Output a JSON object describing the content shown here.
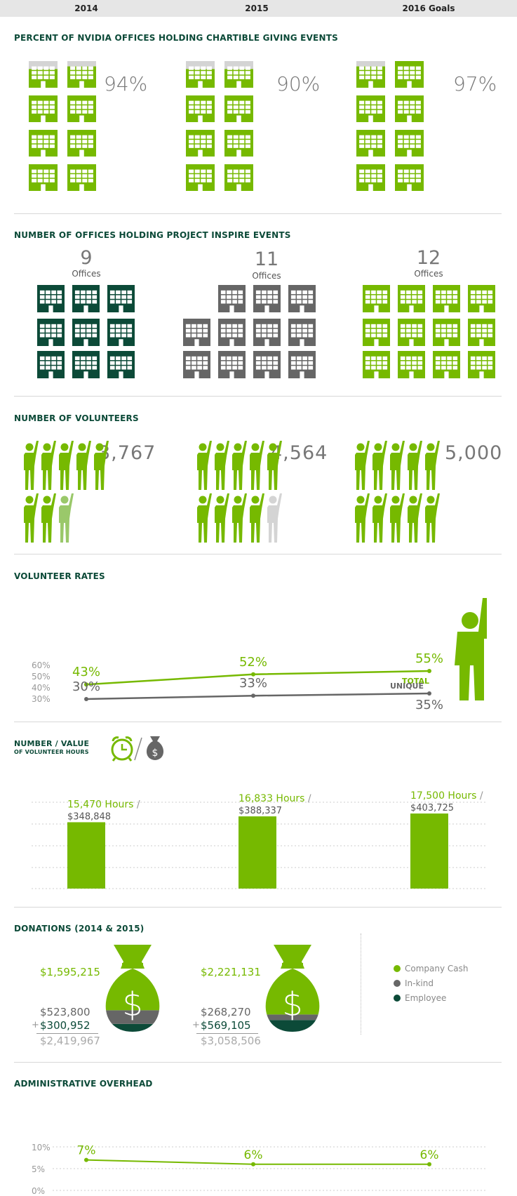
{
  "header": {
    "years": [
      "2014",
      "2015",
      "2016 Goals"
    ]
  },
  "colors": {
    "green": "#76b900",
    "dark_green": "#0c4a38",
    "gray": "#666666",
    "light_gray": "#d4d4d4"
  },
  "sections": {
    "giving_events": "PERCENT OF NVIDIA OFFICES HOLDING CHARTIBLE GIVING EVENTS",
    "project_inspire": "NUMBER OF OFFICES HOLDING PROJECT INSPIRE EVENTS",
    "volunteers": "NUMBER OF VOLUNTEERS",
    "volunteer_rates": "VOLUNTEER RATES",
    "hours_title_1": "NUMBER / VALUE",
    "hours_title_2": "OF VOLUNTEER HOURS",
    "donations": "DONATIONS (2014 & 2015)",
    "overhead": "ADMINISTRATIVE OVERHEAD"
  },
  "chart_data": [
    {
      "type": "table",
      "title": "PERCENT OF NVIDIA OFFICES HOLDING CHARTIBLE GIVING EVENTS",
      "categories": [
        "2014",
        "2015",
        "2016 Goals"
      ],
      "values": [
        94,
        90,
        97
      ],
      "labels": [
        "94%",
        "90%",
        "97%"
      ]
    },
    {
      "type": "table",
      "title": "NUMBER OF OFFICES HOLDING PROJECT INSPIRE EVENTS",
      "categories": [
        "2014",
        "2015",
        "2016 Goals"
      ],
      "values": [
        9,
        11,
        12
      ],
      "labels": [
        "9",
        "11",
        "12"
      ],
      "unit_label": "Offices"
    },
    {
      "type": "table",
      "title": "NUMBER OF VOLUNTEERS",
      "categories": [
        "2014",
        "2015",
        "2016 Goals"
      ],
      "values": [
        3767,
        4564,
        5000
      ],
      "labels": [
        "3,767",
        "4,564",
        "5,000"
      ]
    },
    {
      "type": "line",
      "title": "VOLUNTEER RATES",
      "categories": [
        "2014",
        "2015",
        "2016 Goals"
      ],
      "series": [
        {
          "name": "TOTAL",
          "values": [
            43,
            52,
            55
          ],
          "labels": [
            "43%",
            "52%",
            "55%"
          ]
        },
        {
          "name": "UNIQUE",
          "values": [
            30,
            33,
            35
          ],
          "labels": [
            "30%",
            "33%",
            "35%"
          ]
        }
      ],
      "yticks": [
        "60%",
        "50%",
        "40%",
        "30%"
      ],
      "ylim": [
        30,
        60
      ],
      "grid": false
    },
    {
      "type": "bar",
      "title": "NUMBER / VALUE OF VOLUNTEER HOURS",
      "categories": [
        "2014",
        "2015",
        "2016 Goals"
      ],
      "values": [
        15470,
        16833,
        17500
      ],
      "hour_labels": [
        "15,470 Hours",
        "16,833 Hours",
        "17,500 Hours"
      ],
      "value_labels": [
        "$348,848",
        "$388,337",
        "$403,725"
      ],
      "ylim": [
        0,
        18000
      ],
      "grid": true
    },
    {
      "type": "table",
      "title": "DONATIONS (2014 & 2015)",
      "categories": [
        "2014",
        "2015"
      ],
      "series": [
        {
          "name": "Company Cash",
          "values": [
            1595215,
            2221131
          ],
          "labels": [
            "$1,595,215",
            "$2,221,131"
          ],
          "color": "#76b900"
        },
        {
          "name": "In-kind",
          "values": [
            523800,
            268270
          ],
          "labels": [
            "$523,800",
            "$268,270"
          ],
          "color": "#666666"
        },
        {
          "name": "Employee",
          "values": [
            300952,
            569105
          ],
          "labels": [
            "$300,952",
            "$569,105"
          ],
          "color": "#0c4a38"
        }
      ],
      "totals": [
        "$2,419,967",
        "$3,058,506"
      ],
      "plus_sign": "+",
      "currency_symbol": "$"
    },
    {
      "type": "line",
      "title": "ADMINISTRATIVE OVERHEAD",
      "categories": [
        "2014",
        "2015",
        "2016 Goals"
      ],
      "values": [
        7,
        6,
        6
      ],
      "labels": [
        "7%",
        "6%",
        "6%"
      ],
      "yticks": [
        "10%",
        "5%",
        "0%"
      ],
      "ylim": [
        0,
        10
      ],
      "grid": true
    }
  ]
}
